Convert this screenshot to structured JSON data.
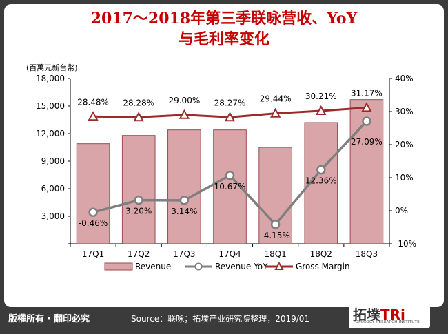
{
  "title_line1": "2017～2018年第三季联咏营收、YoY",
  "title_line2": "与毛利率变化",
  "unit_label": "(百萬元新台幣)",
  "footer": {
    "rights": "版權所有 · 翻印必究",
    "source": "Source：联咏；拓墣产业研究院整理，2019/01",
    "logo_main": "拓墣",
    "logo_ri": "TRi",
    "logo_sub": "TOPOLOGY RESEARCH INSTITUTE"
  },
  "colors": {
    "bar_fill": "#d9a5a8",
    "bar_stroke": "#9c4a50",
    "yoy_line": "#7f7f7f",
    "gm_line": "#9c2a2a",
    "title": "#c40000"
  },
  "chart_data": {
    "type": "bar",
    "categories": [
      "17Q1",
      "17Q2",
      "17Q3",
      "17Q4",
      "18Q1",
      "18Q2",
      "18Q3"
    ],
    "series": [
      {
        "name": "Revenue",
        "type": "bar",
        "axis": "left",
        "values": [
          10900,
          11800,
          12400,
          12400,
          10500,
          13200,
          15700
        ]
      },
      {
        "name": "Revenue YoY",
        "type": "line",
        "axis": "right",
        "values": [
          -0.46,
          3.2,
          3.14,
          10.67,
          -4.15,
          12.36,
          27.09
        ],
        "labels": [
          "-0.46%",
          "3.20%",
          "3.14%",
          "10.67%",
          "-4.15%",
          "12.36%",
          "27.09%"
        ]
      },
      {
        "name": "Gross Margin",
        "type": "line",
        "axis": "right",
        "values": [
          28.48,
          28.28,
          29.0,
          28.27,
          29.44,
          30.21,
          31.17
        ],
        "labels": [
          "28.48%",
          "28.28%",
          "29.00%",
          "28.27%",
          "29.44%",
          "30.21%",
          "31.17%"
        ]
      }
    ],
    "y_left": {
      "min": 0,
      "max": 18000,
      "ticks": [
        0,
        3000,
        6000,
        9000,
        12000,
        15000,
        18000
      ],
      "tick_labels": [
        "-",
        "3,000",
        "6,000",
        "9,000",
        "12,000",
        "15,000",
        "18,000"
      ]
    },
    "y_right": {
      "min": -10,
      "max": 40,
      "ticks": [
        -10,
        0,
        10,
        20,
        30,
        40
      ],
      "tick_labels": [
        "-10%",
        "0%",
        "10%",
        "20%",
        "30%",
        "40%"
      ]
    },
    "legend_position": "bottom",
    "grid": false
  }
}
